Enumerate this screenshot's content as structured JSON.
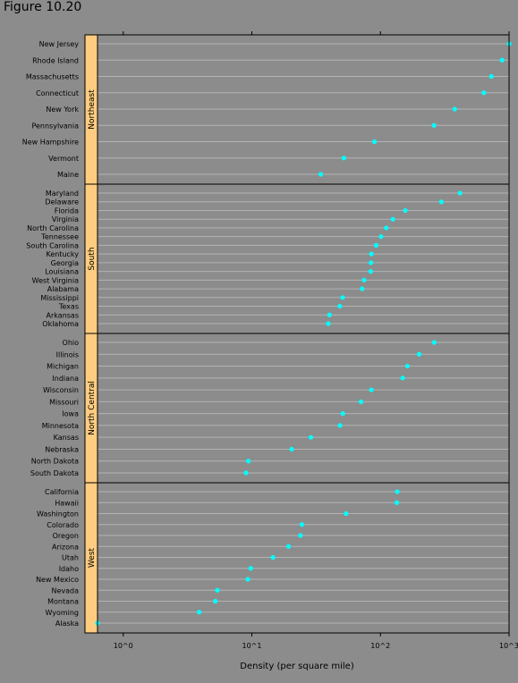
{
  "figure_label": "Figure 10.20",
  "chart_data": {
    "type": "scatter",
    "subtype": "dot-plot-by-region",
    "xlabel": "Density (per square mile)",
    "x_scale": "log10",
    "xlim": [
      0.34,
      1.31
    ],
    "x_ticks": [
      {
        "value": 1,
        "label": "10^0"
      },
      {
        "value": 10,
        "label": "10^1"
      },
      {
        "value": 100,
        "label": "10^2"
      },
      {
        "value": 1000,
        "label": "10^3"
      }
    ],
    "colors": {
      "background": "#8c8c8c",
      "strip": "#ffcc80",
      "point": "#00ffff",
      "grid": "#b3b3b3"
    },
    "panels": [
      {
        "region": "Northeast",
        "states": [
          "New Jersey",
          "Rhode Island",
          "Massachusetts",
          "Connecticut",
          "New York",
          "Pennsylvania",
          "New Hampshire",
          "Vermont",
          "Maine"
        ],
        "values": [
          1002,
          882,
          728,
          637,
          378,
          261,
          89.8,
          51.9,
          34.3
        ]
      },
      {
        "region": "South",
        "states": [
          "Maryland",
          "Delaware",
          "Florida",
          "Virginia",
          "North Carolina",
          "Tennessee",
          "South Carolina",
          "Kentucky",
          "Georgia",
          "Louisiana",
          "West Virginia",
          "Alabama",
          "Mississippi",
          "Texas",
          "Arkansas",
          "Oklahoma"
        ],
        "values": [
          416,
          298,
          156,
          125,
          111,
          101,
          92.6,
          85.0,
          84.4,
          84.0,
          74.6,
          72.0,
          50.8,
          48.3,
          40.1,
          39.3
        ]
      },
      {
        "region": "North Central",
        "states": [
          "Ohio",
          "Illinois",
          "Michigan",
          "Indiana",
          "Wisconsin",
          "Missouri",
          "Iowa",
          "Minnesota",
          "Kansas",
          "Nebraska",
          "North Dakota",
          "South Dakota"
        ],
        "values": [
          262,
          200,
          162,
          149,
          85.0,
          70.6,
          51.0,
          48.4,
          28.8,
          20.4,
          9.4,
          9.0
        ]
      },
      {
        "region": "West",
        "states": [
          "California",
          "Hawaii",
          "Washington",
          "Colorado",
          "Oregon",
          "Arizona",
          "Utah",
          "Idaho",
          "New Mexico",
          "Nevada",
          "Montana",
          "Wyoming",
          "Alaska"
        ],
        "values": [
          135,
          134,
          54.0,
          24.5,
          23.9,
          19.3,
          14.6,
          9.8,
          9.3,
          5.4,
          5.2,
          3.9,
          0.63
        ]
      }
    ]
  }
}
